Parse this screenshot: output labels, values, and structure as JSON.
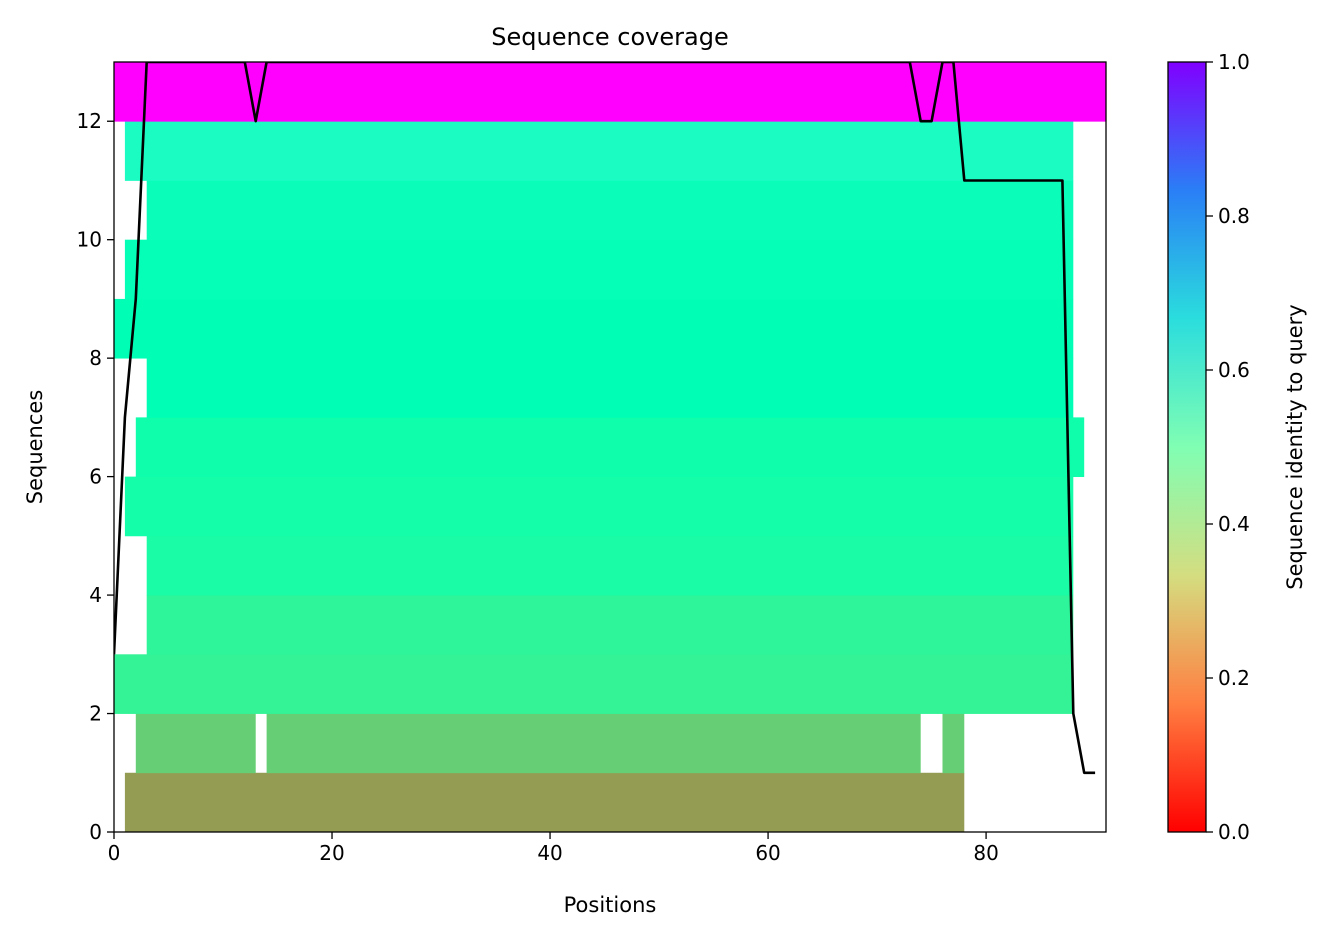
{
  "chart_data": {
    "type": "heatmap",
    "title": "Sequence coverage",
    "xlabel": "Positions",
    "ylabel": "Sequences",
    "xlim": [
      0,
      91
    ],
    "ylim": [
      0,
      13
    ],
    "x_ticks": [
      0,
      20,
      40,
      60,
      80
    ],
    "y_ticks": [
      0,
      2,
      4,
      6,
      8,
      10,
      12
    ],
    "colorbar": {
      "label": "Sequence identity to query",
      "range": [
        0.0,
        1.0
      ],
      "ticks": [
        "0.0",
        "0.2",
        "0.4",
        "0.6",
        "0.8",
        "1.0"
      ],
      "colormap": "rainbow_r"
    },
    "rows": [
      {
        "row": 0,
        "identity": 0.21,
        "segments": [
          [
            1,
            78
          ]
        ]
      },
      {
        "row": 1,
        "identity": 0.3,
        "segments": [
          [
            2,
            13
          ],
          [
            14,
            74
          ],
          [
            76,
            78
          ]
        ]
      },
      {
        "row": 2,
        "identity": 0.4,
        "segments": [
          [
            0,
            88
          ]
        ]
      },
      {
        "row": 3,
        "identity": 0.41,
        "segments": [
          [
            3,
            88
          ]
        ]
      },
      {
        "row": 4,
        "identity": 0.45,
        "segments": [
          [
            3,
            88
          ]
        ]
      },
      {
        "row": 5,
        "identity": 0.46,
        "segments": [
          [
            1,
            88
          ]
        ]
      },
      {
        "row": 6,
        "identity": 0.47,
        "segments": [
          [
            2,
            89
          ]
        ]
      },
      {
        "row": 7,
        "identity": 0.5,
        "segments": [
          [
            3,
            88
          ]
        ]
      },
      {
        "row": 8,
        "identity": 0.5,
        "segments": [
          [
            0,
            88
          ]
        ]
      },
      {
        "row": 9,
        "identity": 0.51,
        "segments": [
          [
            1,
            88
          ]
        ]
      },
      {
        "row": 10,
        "identity": 0.52,
        "segments": [
          [
            3,
            88
          ]
        ]
      },
      {
        "row": 11,
        "identity": 0.55,
        "segments": [
          [
            1,
            88
          ]
        ]
      },
      {
        "row": 12,
        "identity": 1.0,
        "segments": [
          [
            0,
            91
          ]
        ]
      }
    ],
    "coverage_line": {
      "x": [
        0,
        1,
        2,
        3,
        12,
        13,
        14,
        73,
        74,
        75,
        76,
        77,
        78,
        87,
        88,
        89,
        90
      ],
      "y": [
        3,
        7,
        9,
        13,
        13,
        12,
        13,
        13,
        12,
        12,
        13,
        13,
        11,
        11,
        2,
        1,
        1
      ]
    }
  }
}
